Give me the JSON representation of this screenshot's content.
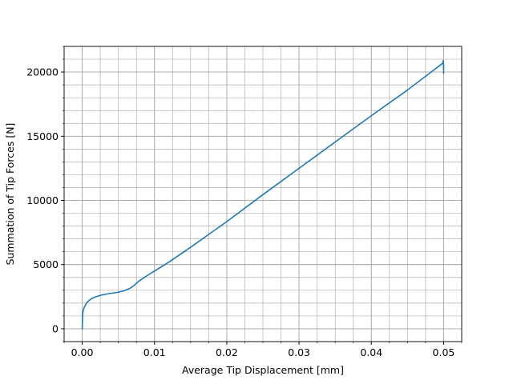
{
  "chart_data": {
    "type": "line",
    "title": "",
    "xlabel": "Average Tip Displacement [mm]",
    "ylabel": "Summation of Tip Forces [N]",
    "xlim": [
      -0.0025,
      0.0525
    ],
    "ylim": [
      -1000,
      22000
    ],
    "x_ticks": [
      0.0,
      0.01,
      0.02,
      0.03,
      0.04,
      0.05
    ],
    "x_tick_labels": [
      "0.00",
      "0.01",
      "0.02",
      "0.03",
      "0.04",
      "0.05"
    ],
    "y_ticks": [
      0,
      5000,
      10000,
      15000,
      20000
    ],
    "y_tick_labels": [
      "0",
      "5000",
      "10000",
      "15000",
      "20000"
    ],
    "x_minor_step": 0.0025,
    "y_minor_step": 1000,
    "grid": true,
    "grid_minor": true,
    "legend": "none",
    "series_color": "#1f77b4",
    "series": [
      {
        "x": [
          0.0,
          5e-05,
          0.0001,
          0.0002,
          0.0004,
          0.0006,
          0.0009,
          0.0013,
          0.0018,
          0.0025,
          0.0033,
          0.0042,
          0.005,
          0.0058,
          0.0066,
          0.0072,
          0.0077,
          0.0082,
          0.009,
          0.01,
          0.012,
          0.015,
          0.02,
          0.025,
          0.03,
          0.035,
          0.04,
          0.045,
          0.0499,
          0.04995,
          0.04998,
          0.05,
          0.05
        ],
        "y": [
          0,
          900,
          1300,
          1550,
          1800,
          2000,
          2180,
          2350,
          2480,
          2600,
          2700,
          2780,
          2850,
          2960,
          3150,
          3380,
          3650,
          3850,
          4150,
          4500,
          5200,
          6350,
          8350,
          10450,
          12500,
          14550,
          16600,
          18600,
          20700,
          20900,
          20800,
          19900,
          20600
        ]
      }
    ]
  }
}
